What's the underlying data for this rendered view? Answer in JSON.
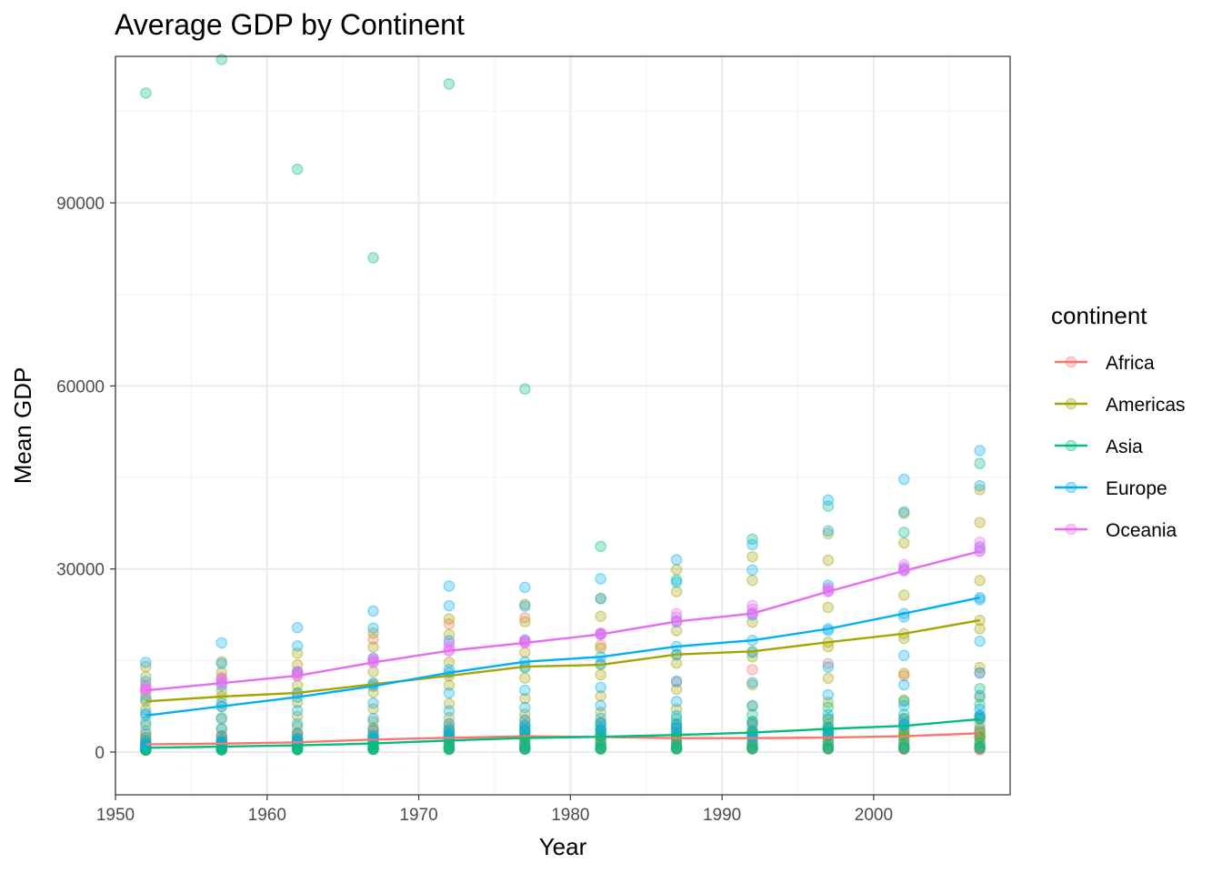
{
  "chart_data": {
    "type": "scatter",
    "title": "Average GDP by Continent",
    "xlabel": "Year",
    "ylabel": "Mean GDP",
    "xlim": [
      1950,
      2009
    ],
    "ylim": [
      -7000,
      114000
    ],
    "x_ticks": [
      1950,
      1960,
      1970,
      1980,
      1990,
      2000
    ],
    "x_tick_labels": [
      "1950",
      "1960",
      "1970",
      "1980",
      "1990",
      "2000"
    ],
    "y_ticks": [
      0,
      30000,
      60000,
      90000
    ],
    "y_tick_labels": [
      "0",
      "30000",
      "60000",
      "90000"
    ],
    "grid": true,
    "legend": {
      "title": "continent",
      "placement": "right"
    },
    "years": [
      1952,
      1957,
      1962,
      1967,
      1972,
      1977,
      1982,
      1987,
      1992,
      1997,
      2002,
      2007
    ],
    "series": [
      {
        "name": "Africa",
        "color": "#F8766D",
        "mean": [
          1253,
          1385,
          1598,
          2050,
          2340,
          2586,
          2482,
          2283,
          2282,
          2379,
          2599,
          3089
        ],
        "points_low": [
          300,
          400,
          450,
          500,
          550,
          600,
          650,
          600,
          550,
          500,
          450,
          400
        ],
        "points_high": [
          11000,
          12000,
          13000,
          18500,
          21000,
          22000,
          17500,
          11500,
          13500,
          14500,
          12500,
          13000
        ]
      },
      {
        "name": "Americas",
        "color": "#A3A500",
        "mean": [
          8300,
          9100,
          9700,
          11100,
          12500,
          14000,
          14300,
          16000,
          16500,
          18000,
          19400,
          21600
        ],
        "points_low": [
          1400,
          1700,
          1800,
          2200,
          2500,
          2700,
          2900,
          2600,
          2800,
          2800,
          2600,
          2400
        ],
        "points_high": [
          14000,
          14800,
          16200,
          19500,
          21800,
          24200,
          25200,
          29900,
          32000,
          35800,
          39100,
          43000
        ]
      },
      {
        "name": "Asia",
        "color": "#00BF7D",
        "mean": [
          700,
          900,
          1100,
          1400,
          1900,
          2300,
          2500,
          2800,
          3200,
          3800,
          4300,
          5400
        ],
        "points_low": [
          330,
          350,
          400,
          420,
          430,
          450,
          480,
          500,
          520,
          550,
          600,
          650
        ],
        "points_high": [
          108000,
          113500,
          95500,
          81000,
          109500,
          59500,
          33700,
          28200,
          34900,
          40300,
          36000,
          47300
        ]
      },
      {
        "name": "Europe",
        "color": "#00B0F6",
        "mean": [
          6000,
          7500,
          9000,
          10800,
          13000,
          14800,
          15600,
          17300,
          18300,
          20200,
          22700,
          25300
        ],
        "points_low": [
          970,
          1350,
          1700,
          2100,
          2800,
          3500,
          3600,
          3800,
          2500,
          3200,
          4500,
          5900
        ],
        "points_high": [
          14700,
          17900,
          20400,
          23100,
          27200,
          27000,
          28400,
          31500,
          34000,
          41300,
          44700,
          49400
        ]
      },
      {
        "name": "Oceania",
        "color": "#E76BF3",
        "mean": [
          10100,
          11300,
          12500,
          14700,
          16600,
          17900,
          19300,
          21400,
          22700,
          26300,
          29700,
          32900
        ],
        "points_low": [
          10100,
          11300,
          12500,
          14700,
          16600,
          17900,
          19300,
          21400,
          22700,
          26300,
          29700,
          32900
        ],
        "points_high": [
          10600,
          12200,
          13200,
          15300,
          17800,
          18300,
          19500,
          22700,
          24000,
          26900,
          30700,
          34400
        ]
      }
    ]
  }
}
